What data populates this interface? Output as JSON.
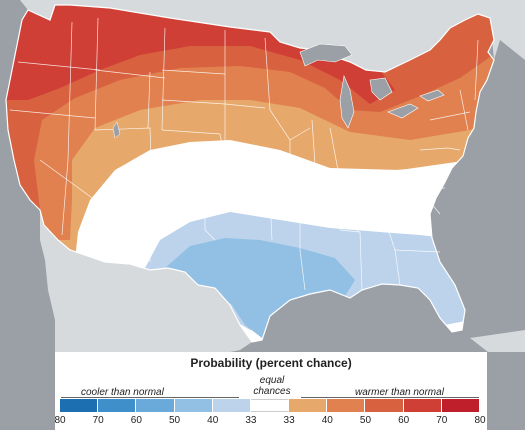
{
  "legend": {
    "title": "Probability (percent chance)",
    "cooler_label": "cooler than normal",
    "equal_label_1": "equal",
    "equal_label_2": "chances",
    "warmer_label": "warmer than normal",
    "ticks": [
      "80",
      "70",
      "60",
      "50",
      "40",
      "33",
      "33",
      "40",
      "50",
      "60",
      "70",
      "80"
    ],
    "colors": [
      "#1c6fb0",
      "#3f8fcb",
      "#6aaadb",
      "#92c0e4",
      "#bcd3eb",
      "#ffffff",
      "#e7a86b",
      "#e0814f",
      "#d8613f",
      "#d03f35",
      "#bf1f2a"
    ]
  },
  "map_colors": {
    "background": "#9aa0a6",
    "land_other": "#d7dadd",
    "water": "#9aa0a6",
    "state_lines": "#ffffff",
    "equal_chances": "#ffffff",
    "cool_33": "#bcd3eb",
    "cool_40": "#92c0e4",
    "warm_40": "#e7a86b",
    "warm_50": "#e0814f",
    "warm_60": "#d8613f",
    "warm_70": "#d03f35"
  }
}
